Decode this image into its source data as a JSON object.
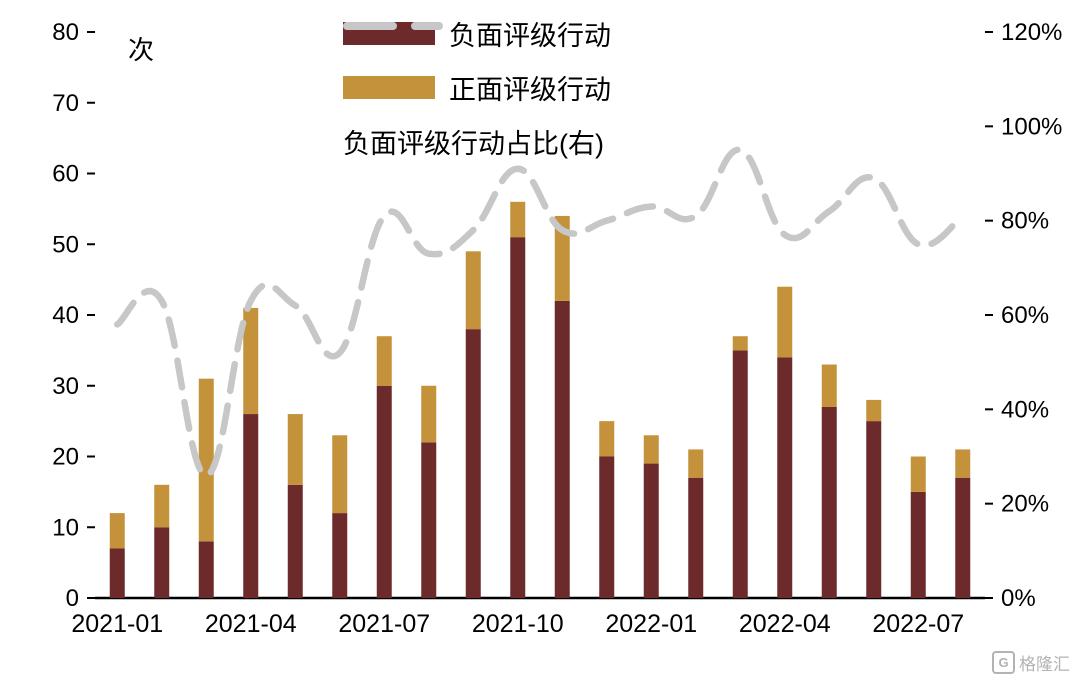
{
  "chart_data": {
    "type": "bar",
    "unit_label": "次",
    "categories": [
      "2021-01",
      "2021-02",
      "2021-03",
      "2021-04",
      "2021-05",
      "2021-06",
      "2021-07",
      "2021-08",
      "2021-09",
      "2021-10",
      "2021-11",
      "2021-12",
      "2022-01",
      "2022-02",
      "2022-03",
      "2022-04",
      "2022-05",
      "2022-06",
      "2022-07",
      "2022-08"
    ],
    "x_ticks": [
      {
        "index": 0,
        "label": "2021-01"
      },
      {
        "index": 3,
        "label": "2021-04"
      },
      {
        "index": 6,
        "label": "2021-07"
      },
      {
        "index": 9,
        "label": "2021-10"
      },
      {
        "index": 12,
        "label": "2022-01"
      },
      {
        "index": 15,
        "label": "2022-04"
      },
      {
        "index": 18,
        "label": "2022-07"
      }
    ],
    "series": [
      {
        "name": "负面评级行动",
        "type": "bar",
        "stack": true,
        "axis": "left",
        "color": "#6D2A2A",
        "values": [
          7,
          10,
          8,
          26,
          16,
          12,
          30,
          22,
          38,
          51,
          42,
          20,
          19,
          17,
          35,
          34,
          27,
          25,
          15,
          17
        ]
      },
      {
        "name": "正面评级行动",
        "type": "bar",
        "stack": true,
        "axis": "left",
        "color": "#C4923A",
        "values": [
          5,
          6,
          23,
          15,
          10,
          11,
          7,
          8,
          11,
          5,
          12,
          5,
          4,
          4,
          2,
          10,
          6,
          3,
          5,
          4
        ]
      },
      {
        "name": "负面评级行动占比(右)",
        "type": "line",
        "axis": "right",
        "color": "#C7C7C7",
        "values": [
          58,
          63,
          26,
          63,
          62,
          52,
          81,
          73,
          78,
          91,
          78,
          80,
          83,
          81,
          95,
          77,
          82,
          89,
          75,
          81
        ]
      }
    ],
    "left_axis": {
      "min": 0,
      "max": 80,
      "step": 10,
      "suffix": ""
    },
    "right_axis": {
      "min": 0,
      "max": 120,
      "step": 20,
      "suffix": "%"
    },
    "grid": false,
    "legend_position": "top"
  },
  "watermark": {
    "logo": "G",
    "text": "格隆汇"
  }
}
